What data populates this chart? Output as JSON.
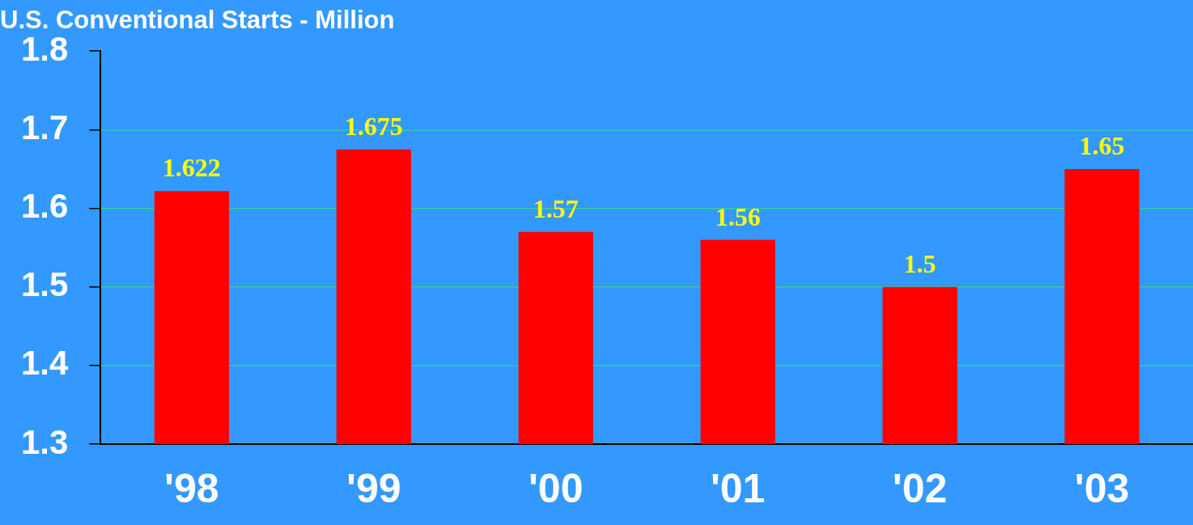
{
  "chart_data": {
    "type": "bar",
    "title": "U.S. Conventional Starts - Million",
    "categories": [
      "'98",
      "'99",
      "'00",
      "'01",
      "'02",
      "'03"
    ],
    "values": [
      1.622,
      1.675,
      1.57,
      1.56,
      1.5,
      1.65
    ],
    "color": "#ff0000",
    "ylim": [
      1.3,
      1.8
    ],
    "yticks": [
      1.3,
      1.4,
      1.5,
      1.6,
      1.7,
      1.8
    ],
    "grid": "y",
    "data_labels": true,
    "legend": false
  }
}
